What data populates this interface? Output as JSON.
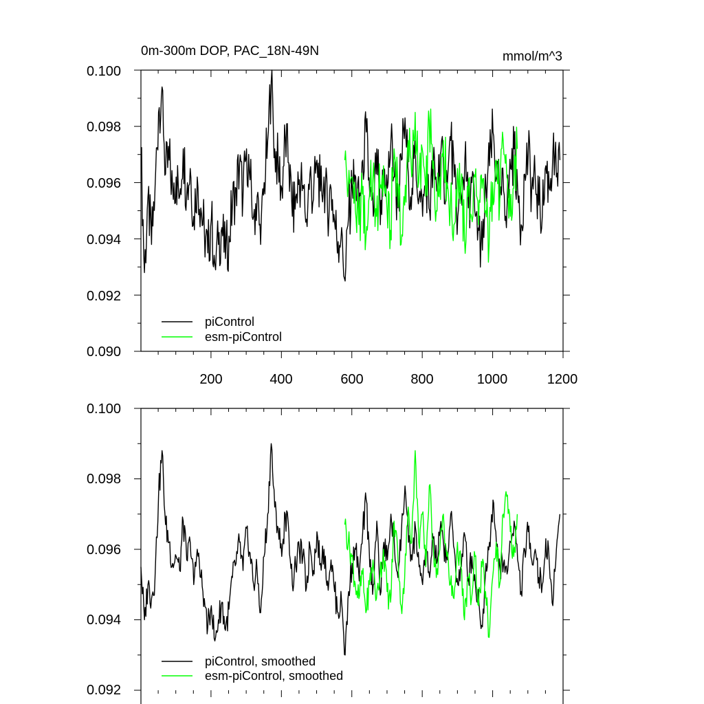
{
  "chart_data": [
    {
      "type": "line",
      "title_left": "0m-300m DOP, PAC_18N-49N",
      "title_right": "mmol/m^3",
      "xlim": [
        1,
        1200
      ],
      "ylim": [
        0.09,
        0.1
      ],
      "x_ticks": [
        "200",
        "400",
        "600",
        "800",
        "1000",
        "1200"
      ],
      "y_ticks": [
        "0.090",
        "0.092",
        "0.094",
        "0.096",
        "0.098",
        "0.100"
      ],
      "legend_position": "bottom-left",
      "series": [
        {
          "name": "piControl",
          "color": "#000000",
          "x_start": 1,
          "x_step": 10,
          "values": [
            0.0972,
            0.0928,
            0.0955,
            0.0938,
            0.0958,
            0.0985,
            0.0994,
            0.0963,
            0.0968,
            0.0958,
            0.0962,
            0.0955,
            0.0972,
            0.0956,
            0.0965,
            0.0948,
            0.0962,
            0.0951,
            0.0943,
            0.0935,
            0.0947,
            0.0931,
            0.0938,
            0.0944,
            0.0933,
            0.0941,
            0.0952,
            0.0958,
            0.0966,
            0.0955,
            0.0972,
            0.0961,
            0.0948,
            0.0955,
            0.0938,
            0.096,
            0.0975,
            0.0996,
            0.0972,
            0.0966,
            0.0958,
            0.0976,
            0.0967,
            0.0948,
            0.0955,
            0.0961,
            0.0959,
            0.0947,
            0.0963,
            0.0954,
            0.0968,
            0.0957,
            0.0962,
            0.095,
            0.0958,
            0.0946,
            0.0939,
            0.0944,
            0.0925,
            0.0948,
            0.0958,
            0.0962,
            0.095,
            0.0968,
            0.0978,
            0.0955,
            0.0948,
            0.0972,
            0.0945,
            0.0965,
            0.0958,
            0.0975,
            0.0962,
            0.0951,
            0.0968,
            0.0983,
            0.0962,
            0.0958,
            0.097,
            0.0955,
            0.0948,
            0.0962,
            0.095,
            0.0966,
            0.0957,
            0.097,
            0.0963,
            0.0958,
            0.0975,
            0.0962,
            0.0948,
            0.0955,
            0.0968,
            0.0951,
            0.096,
            0.0948,
            0.0943,
            0.0936,
            0.0958,
            0.0966,
            0.0978,
            0.0962,
            0.0955,
            0.0957,
            0.0952,
            0.0965,
            0.0972,
            0.0958,
            0.0945,
            0.0963,
            0.097,
            0.0958,
            0.0962,
            0.0952,
            0.0948,
            0.0966,
            0.0958,
            0.097,
            0.0962,
            0.0968
          ]
        },
        {
          "name": "esm-piControl",
          "color": "#00ff00",
          "x_start": 580,
          "x_step": 10,
          "values": [
            0.0968,
            0.0958,
            0.0962,
            0.095,
            0.0945,
            0.0956,
            0.094,
            0.0955,
            0.0962,
            0.0948,
            0.0958,
            0.0966,
            0.095,
            0.0943,
            0.0972,
            0.0962,
            0.0938,
            0.0952,
            0.0975,
            0.0962,
            0.0985,
            0.096,
            0.0972,
            0.0955,
            0.0982,
            0.0965,
            0.095,
            0.0962,
            0.0975,
            0.096,
            0.0952,
            0.0945,
            0.0965,
            0.0958,
            0.094,
            0.0955,
            0.0948,
            0.0962,
            0.0945,
            0.0958,
            0.095,
            0.0938,
            0.096,
            0.0968,
            0.0952,
            0.0975,
            0.0962,
            0.0948,
            0.0958,
            0.0972
          ]
        }
      ]
    },
    {
      "type": "line",
      "xlim": [
        1,
        1200
      ],
      "ylim": [
        0.092,
        0.1
      ],
      "y_ticks": [
        "0.092",
        "0.094",
        "0.096",
        "0.098",
        "0.100"
      ],
      "legend_position": "bottom-left",
      "series": [
        {
          "name": "piControl, smoothed",
          "color": "#000000",
          "x_start": 1,
          "x_step": 10,
          "values": [
            0.0955,
            0.094,
            0.095,
            0.0946,
            0.0952,
            0.0975,
            0.0988,
            0.0967,
            0.0962,
            0.0956,
            0.0958,
            0.0954,
            0.0968,
            0.0957,
            0.0962,
            0.095,
            0.096,
            0.0952,
            0.0946,
            0.0938,
            0.0944,
            0.0934,
            0.094,
            0.0945,
            0.0937,
            0.0943,
            0.0952,
            0.0956,
            0.0962,
            0.0954,
            0.0966,
            0.0959,
            0.095,
            0.0954,
            0.0942,
            0.0958,
            0.097,
            0.099,
            0.0972,
            0.0966,
            0.0958,
            0.097,
            0.0965,
            0.095,
            0.0955,
            0.096,
            0.0958,
            0.0949,
            0.0961,
            0.0954,
            0.0965,
            0.0956,
            0.096,
            0.0951,
            0.0957,
            0.0948,
            0.0942,
            0.0945,
            0.093,
            0.0948,
            0.0956,
            0.096,
            0.0951,
            0.0965,
            0.0974,
            0.0955,
            0.095,
            0.0968,
            0.0947,
            0.0962,
            0.0957,
            0.097,
            0.0961,
            0.0952,
            0.0965,
            0.0978,
            0.0962,
            0.0957,
            0.0966,
            0.0955,
            0.095,
            0.096,
            0.0952,
            0.0963,
            0.0956,
            0.0966,
            0.0961,
            0.0957,
            0.097,
            0.096,
            0.095,
            0.0955,
            0.0964,
            0.0952,
            0.0958,
            0.095,
            0.0945,
            0.0938,
            0.0956,
            0.0962,
            0.0974,
            0.0961,
            0.0955,
            0.0956,
            0.0953,
            0.0962,
            0.0968,
            0.0957,
            0.0948,
            0.096,
            0.0965,
            0.0957,
            0.096,
            0.0952,
            0.095,
            0.0963,
            0.0956,
            0.0944,
            0.096,
            0.097
          ]
        },
        {
          "name": "esm-piControl, smoothed",
          "color": "#00ff00",
          "x_start": 580,
          "x_step": 10,
          "values": [
            0.0967,
            0.0962,
            0.0958,
            0.095,
            0.0946,
            0.0953,
            0.0942,
            0.095,
            0.0957,
            0.0946,
            0.0953,
            0.096,
            0.0948,
            0.0945,
            0.0968,
            0.096,
            0.0944,
            0.0952,
            0.0972,
            0.0962,
            0.0988,
            0.0962,
            0.097,
            0.0955,
            0.0978,
            0.0963,
            0.0952,
            0.096,
            0.097,
            0.0958,
            0.095,
            0.0946,
            0.0962,
            0.0955,
            0.094,
            0.0952,
            0.0946,
            0.0958,
            0.0944,
            0.0955,
            0.0948,
            0.0935,
            0.0952,
            0.0962,
            0.095,
            0.097,
            0.0975,
            0.0965,
            0.0958,
            0.097
          ]
        }
      ]
    }
  ]
}
